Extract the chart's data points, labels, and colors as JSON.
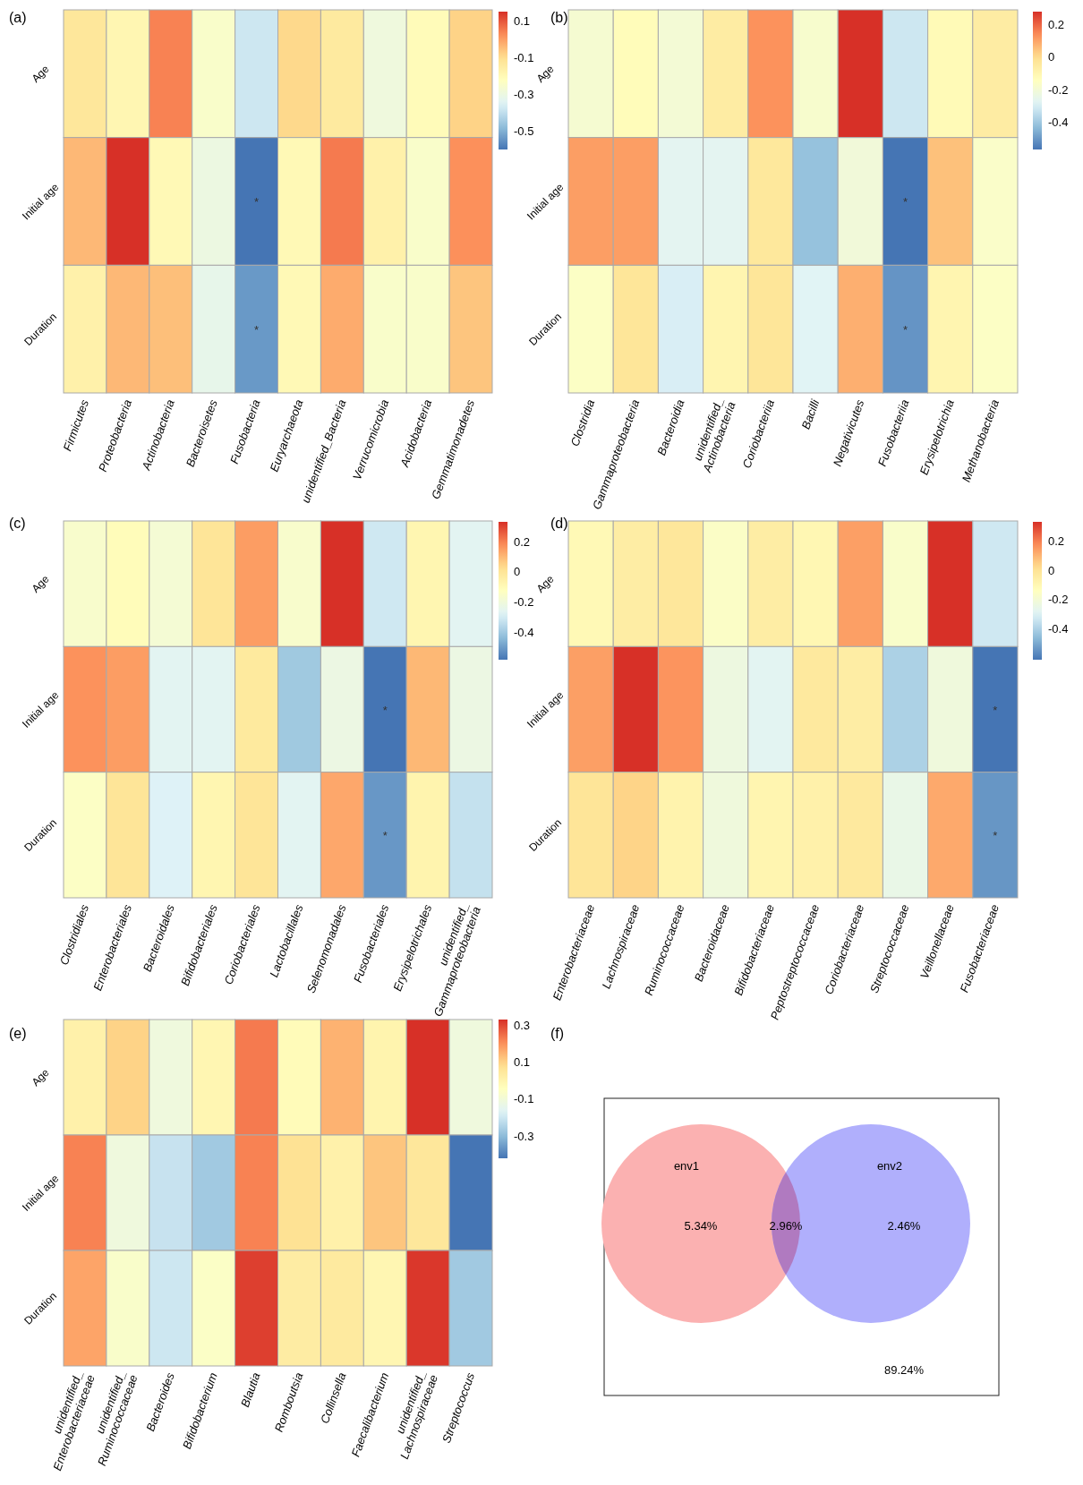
{
  "chart_data": [
    {
      "type": "heatmap",
      "title": "(a)",
      "categories": [
        "Firmicutes",
        "Proteobacteria",
        "Actinobacteria",
        "Bacteroisetes",
        "Fusobacteria",
        "Euryarchaeota",
        "unidentified_Bacteria",
        "Verrucomicrobia",
        "Acidobacteria",
        "Gemmatimonadetes"
      ],
      "y_categories": [
        "Age",
        "Initial age",
        "Duration"
      ],
      "cells": [
        [
          -0.13,
          -0.19,
          0.04,
          -0.25,
          -0.38,
          -0.09,
          -0.14,
          -0.29,
          -0.21,
          -0.08
        ],
        [
          -0.04,
          0.15,
          -0.2,
          -0.3,
          -0.6,
          -0.2,
          0.05,
          -0.17,
          -0.25,
          0.02
        ],
        [
          -0.17,
          -0.04,
          -0.05,
          -0.32,
          -0.54,
          -0.2,
          -0.02,
          -0.25,
          -0.25,
          -0.06
        ]
      ],
      "cell_labels": [
        [
          null,
          null,
          null,
          null,
          null,
          null,
          null,
          null,
          null,
          null
        ],
        [
          null,
          null,
          null,
          null,
          "*",
          null,
          null,
          null,
          null,
          null
        ],
        [
          null,
          null,
          null,
          null,
          "*",
          null,
          null,
          null,
          null,
          null
        ]
      ],
      "clim": [
        -0.6,
        0.15
      ],
      "cticks": [
        0.1,
        -0.1,
        -0.3,
        -0.5
      ]
    },
    {
      "type": "heatmap",
      "title": "(b)",
      "categories": [
        "Clostridia",
        "Gammaproteobacteria",
        "Bacteroidia",
        "unidentified_\nActinobacteria",
        "Coriobacteriia",
        "Bacilli",
        "Negativicutes",
        "Fusobacteriia",
        "Erysipelotrichia",
        "Methanobacteria"
      ],
      "y_categories": [
        "Age",
        "Initial age",
        "Duration"
      ],
      "cells": [
        [
          -0.19,
          -0.13,
          -0.2,
          -0.06,
          0.13,
          -0.18,
          0.28,
          -0.32,
          -0.12,
          -0.06
        ],
        [
          0.11,
          0.11,
          -0.27,
          -0.27,
          -0.04,
          -0.42,
          -0.21,
          -0.57,
          0.05,
          -0.17
        ],
        [
          -0.16,
          -0.03,
          -0.3,
          -0.1,
          -0.03,
          -0.28,
          0.08,
          -0.51,
          -0.1,
          -0.16
        ]
      ],
      "cell_labels": [
        [
          null,
          null,
          null,
          null,
          null,
          null,
          null,
          null,
          null,
          null
        ],
        [
          null,
          null,
          null,
          null,
          null,
          null,
          null,
          "*",
          null,
          null
        ],
        [
          null,
          null,
          null,
          null,
          null,
          null,
          null,
          "*",
          null,
          null
        ]
      ],
      "clim": [
        -0.57,
        0.28
      ],
      "cticks": [
        0.2,
        0,
        -0.2,
        -0.4
      ]
    },
    {
      "type": "heatmap",
      "title": "(c)",
      "categories": [
        "Clostridiales",
        "Enterobacteriales",
        "Bacteroidales",
        "Bifidobacteriales",
        "Coriobacteriales",
        "Lactobacillales",
        "Selenomonadales",
        "Fusobacteriales",
        "Erysipelotrichales",
        "unidentified_\nGammaproteobacteria"
      ],
      "y_categories": [
        "Age",
        "Initial age",
        "Duration"
      ],
      "cells": [
        [
          -0.16,
          -0.11,
          -0.18,
          0,
          0.15,
          -0.16,
          0.33,
          -0.31,
          -0.08,
          -0.26
        ],
        [
          0.17,
          0.15,
          -0.26,
          -0.26,
          -0.02,
          -0.4,
          -0.22,
          -0.58,
          0.1,
          -0.22
        ],
        [
          -0.14,
          0,
          -0.28,
          -0.08,
          0,
          -0.26,
          0.13,
          -0.51,
          -0.07,
          -0.33
        ]
      ],
      "cell_labels": [
        [
          null,
          null,
          null,
          null,
          null,
          null,
          null,
          null,
          null,
          null
        ],
        [
          null,
          null,
          null,
          null,
          null,
          null,
          null,
          "*",
          null,
          null
        ],
        [
          null,
          null,
          null,
          null,
          null,
          null,
          null,
          "*",
          null,
          null
        ]
      ],
      "clim": [
        -0.58,
        0.33
      ],
      "cticks": [
        0.2,
        0,
        -0.2,
        -0.4
      ]
    },
    {
      "type": "heatmap",
      "title": "(d)",
      "categories": [
        "Enterobacteriaceae",
        "Lachnospiraceae",
        "Ruminococcaceae",
        "Bacteroidaceae",
        "Bifidobacteriaceae",
        "Peptostreptococcaceae",
        "Coriobacteriaceae",
        "Streptococcaceae",
        "Veillonellaceae",
        "Fusobacteriaceae"
      ],
      "y_categories": [
        "Age",
        "Initial age",
        "Duration"
      ],
      "cells": [
        [
          -0.11,
          -0.05,
          -0.02,
          -0.16,
          -0.05,
          -0.1,
          0.14,
          -0.17,
          0.33,
          -0.33
        ],
        [
          0.14,
          0.33,
          0.16,
          -0.23,
          -0.28,
          -0.03,
          -0.05,
          -0.4,
          -0.22,
          -0.61
        ],
        [
          -0.01,
          0.04,
          -0.08,
          -0.22,
          -0.09,
          -0.07,
          -0.03,
          -0.25,
          0.12,
          -0.54
        ]
      ],
      "cell_labels": [
        [
          null,
          null,
          null,
          null,
          null,
          null,
          null,
          null,
          null,
          null
        ],
        [
          null,
          null,
          null,
          null,
          null,
          null,
          null,
          null,
          null,
          "*"
        ],
        [
          null,
          null,
          null,
          null,
          null,
          null,
          null,
          null,
          null,
          "*"
        ]
      ],
      "clim": [
        -0.61,
        0.33
      ],
      "cticks": [
        0.2,
        0,
        -0.2,
        -0.4
      ]
    },
    {
      "type": "heatmap",
      "title": "(e)",
      "categories": [
        "unidentified_\nEnterobacteriaceae",
        "unidentified_\nRuminococcaceae",
        "Bacteroides",
        "Bifidobacterium",
        "Blautia",
        "Romboutsia",
        "Collinsella",
        "Faecalibacterium",
        "unidentified_\nLachnospiraceae",
        "Streptococcus"
      ],
      "y_categories": [
        "Age",
        "Initial age",
        "Duration"
      ],
      "cells": [
        [
          0.01,
          0.1,
          -0.11,
          -0.01,
          0.23,
          -0.03,
          0.15,
          0,
          0.33,
          -0.11
        ],
        [
          0.22,
          -0.11,
          -0.21,
          -0.27,
          0.22,
          0.07,
          0.01,
          0.12,
          0.05,
          -0.42
        ],
        [
          0.17,
          -0.07,
          -0.2,
          -0.06,
          0.31,
          0.03,
          0.04,
          -0.01,
          0.32,
          -0.27
        ]
      ],
      "clim": [
        -0.42,
        0.33
      ],
      "cticks": [
        0.3,
        0.1,
        -0.1,
        -0.3
      ]
    },
    {
      "type": "other",
      "title": "(f)",
      "categories": [
        "env1",
        null,
        "env2",
        null
      ],
      "value_labels": [
        "5.34%",
        "2.96%",
        "2.46%",
        "89.24%"
      ],
      "colors": [
        "#fbb1b1",
        "#b07ac0",
        "#b0affc",
        null
      ]
    }
  ]
}
